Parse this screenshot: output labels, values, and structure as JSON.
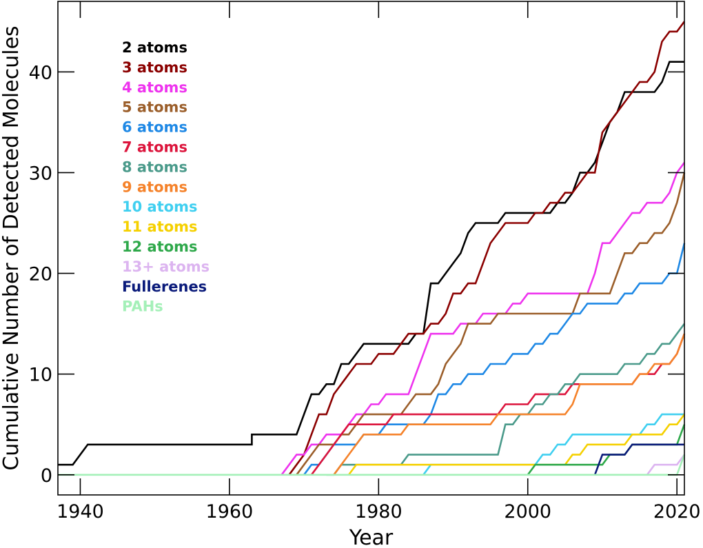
{
  "chart_data": {
    "type": "line",
    "title": "",
    "xlabel": "Year",
    "ylabel": "Cumulative Number of Detected Molecules",
    "xlim": [
      1937,
      2021
    ],
    "ylim": [
      -2,
      47
    ],
    "xticks": [
      1940,
      1960,
      1980,
      2000,
      2020
    ],
    "yticks": [
      0,
      10,
      20,
      30,
      40
    ],
    "grid": false,
    "legend_position": "top-left",
    "series": [
      {
        "name": "2 atoms",
        "color": "#000000",
        "x": [
          1937,
          1939,
          1941,
          1963,
          1963,
          1969,
          1970,
          1971,
          1972,
          1973,
          1974,
          1975,
          1976,
          1977,
          1978,
          1979,
          1980,
          1981,
          1982,
          1983,
          1984,
          1985,
          1986,
          1987,
          1988,
          1989,
          1990,
          1991,
          1992,
          1993,
          1994,
          1995,
          1996,
          1997,
          1998,
          1999,
          2000,
          2001,
          2002,
          2003,
          2004,
          2005,
          2006,
          2007,
          2008,
          2009,
          2010,
          2011,
          2012,
          2013,
          2014,
          2015,
          2016,
          2017,
          2018,
          2019,
          2020,
          2021
        ],
        "y": [
          1,
          1,
          3,
          3,
          4,
          4,
          6,
          8,
          8,
          9,
          9,
          11,
          11,
          12,
          13,
          13,
          13,
          13,
          13,
          13,
          13,
          14,
          14,
          19,
          19,
          20,
          21,
          22,
          24,
          25,
          25,
          25,
          25,
          26,
          26,
          26,
          26,
          26,
          26,
          26,
          27,
          27,
          28,
          30,
          30,
          31,
          33,
          35,
          36,
          38,
          38,
          38,
          38,
          38,
          39,
          41,
          41,
          41
        ]
      },
      {
        "name": "3 atoms",
        "color": "#8b0000",
        "x": [
          1968,
          1969,
          1970,
          1971,
          1972,
          1973,
          1974,
          1975,
          1976,
          1977,
          1978,
          1979,
          1980,
          1981,
          1982,
          1983,
          1984,
          1985,
          1986,
          1987,
          1988,
          1989,
          1990,
          1991,
          1992,
          1993,
          1994,
          1995,
          1996,
          1997,
          1998,
          1999,
          2000,
          2001,
          2002,
          2003,
          2004,
          2005,
          2006,
          2007,
          2008,
          2009,
          2010,
          2011,
          2012,
          2013,
          2014,
          2015,
          2016,
          2017,
          2018,
          2019,
          2020,
          2021
        ],
        "y": [
          0,
          1,
          2,
          4,
          6,
          6,
          8,
          9,
          10,
          11,
          11,
          11,
          12,
          12,
          12,
          13,
          14,
          14,
          14,
          15,
          15,
          16,
          18,
          18,
          19,
          19,
          21,
          23,
          24,
          25,
          25,
          25,
          25,
          26,
          26,
          27,
          27,
          28,
          28,
          29,
          30,
          30,
          34,
          35,
          36,
          37,
          38,
          39,
          39,
          40,
          43,
          44,
          44,
          45
        ]
      },
      {
        "name": "4 atoms",
        "color": "#ee33ee",
        "x": [
          1967,
          1968,
          1969,
          1970,
          1971,
          1972,
          1973,
          1974,
          1975,
          1976,
          1977,
          1978,
          1979,
          1980,
          1981,
          1982,
          1983,
          1984,
          1985,
          1986,
          1987,
          1988,
          1989,
          1990,
          1991,
          1992,
          1993,
          1994,
          1995,
          1996,
          1997,
          1998,
          1999,
          2000,
          2001,
          2002,
          2003,
          2004,
          2005,
          2006,
          2007,
          2008,
          2009,
          2010,
          2011,
          2012,
          2013,
          2014,
          2015,
          2016,
          2017,
          2018,
          2019,
          2020,
          2021
        ],
        "y": [
          0,
          1,
          2,
          2,
          3,
          3,
          4,
          4,
          4,
          5,
          6,
          6,
          7,
          7,
          8,
          8,
          8,
          8,
          10,
          12,
          14,
          14,
          14,
          14,
          15,
          15,
          15,
          16,
          16,
          16,
          16,
          17,
          17,
          18,
          18,
          18,
          18,
          18,
          18,
          18,
          18,
          18,
          20,
          23,
          23,
          24,
          25,
          26,
          26,
          27,
          27,
          27,
          28,
          30,
          31
        ]
      },
      {
        "name": "5 atoms",
        "color": "#9b5e2a",
        "x": [
          1969,
          1970,
          1971,
          1972,
          1973,
          1974,
          1975,
          1976,
          1977,
          1978,
          1979,
          1980,
          1981,
          1982,
          1983,
          1984,
          1985,
          1986,
          1987,
          1988,
          1989,
          1990,
          1991,
          1992,
          1993,
          1994,
          1995,
          1996,
          1997,
          1998,
          1999,
          2000,
          2001,
          2002,
          2003,
          2004,
          2005,
          2006,
          2007,
          2008,
          2009,
          2010,
          2011,
          2012,
          2013,
          2014,
          2015,
          2016,
          2017,
          2018,
          2019,
          2020,
          2021
        ],
        "y": [
          0,
          1,
          2,
          3,
          3,
          3,
          4,
          4,
          5,
          6,
          6,
          6,
          6,
          6,
          6,
          7,
          8,
          8,
          8,
          9,
          11,
          12,
          13,
          15,
          15,
          15,
          15,
          16,
          16,
          16,
          16,
          16,
          16,
          16,
          16,
          16,
          16,
          16,
          18,
          18,
          18,
          18,
          18,
          20,
          22,
          22,
          23,
          23,
          24,
          24,
          25,
          27,
          30
        ]
      },
      {
        "name": "6 atoms",
        "color": "#1e88e5",
        "x": [
          1970,
          1971,
          1972,
          1973,
          1974,
          1975,
          1976,
          1977,
          1978,
          1979,
          1980,
          1981,
          1982,
          1983,
          1984,
          1985,
          1986,
          1987,
          1988,
          1989,
          1990,
          1991,
          1992,
          1993,
          1994,
          1995,
          1996,
          1997,
          1998,
          1999,
          2000,
          2001,
          2002,
          2003,
          2004,
          2005,
          2006,
          2007,
          2008,
          2009,
          2010,
          2011,
          2012,
          2013,
          2014,
          2015,
          2016,
          2017,
          2018,
          2019,
          2020,
          2021
        ],
        "y": [
          0,
          1,
          1,
          2,
          3,
          3,
          3,
          3,
          4,
          4,
          4,
          5,
          5,
          5,
          5,
          5,
          5,
          6,
          8,
          8,
          9,
          9,
          10,
          10,
          10,
          11,
          11,
          11,
          12,
          12,
          12,
          13,
          13,
          14,
          14,
          15,
          16,
          16,
          17,
          17,
          17,
          17,
          17,
          18,
          18,
          19,
          19,
          19,
          19,
          20,
          20,
          23
        ]
      },
      {
        "name": "7 atoms",
        "color": "#dc143c",
        "x": [
          1971,
          1972,
          1973,
          1974,
          1975,
          1976,
          1977,
          1978,
          1979,
          1980,
          1981,
          1982,
          1983,
          1984,
          1985,
          1986,
          1987,
          1988,
          1989,
          1990,
          1991,
          1992,
          1993,
          1994,
          1995,
          1996,
          1997,
          1998,
          1999,
          2000,
          2001,
          2002,
          2003,
          2004,
          2005,
          2006,
          2007,
          2008,
          2009,
          2010,
          2011,
          2012,
          2013,
          2014,
          2015,
          2016,
          2017,
          2018,
          2019,
          2020,
          2021
        ],
        "y": [
          0,
          1,
          2,
          3,
          4,
          5,
          5,
          5,
          5,
          5,
          5,
          6,
          6,
          6,
          6,
          6,
          6,
          6,
          6,
          6,
          6,
          6,
          6,
          6,
          6,
          6,
          7,
          7,
          7,
          7,
          8,
          8,
          8,
          8,
          8,
          9,
          9,
          9,
          9,
          9,
          9,
          9,
          9,
          9,
          10,
          10,
          10,
          11,
          11,
          12,
          14
        ]
      },
      {
        "name": "8 atoms",
        "color": "#4a9a8a",
        "x": [
          1973,
          1974,
          1975,
          1976,
          1977,
          1978,
          1979,
          1980,
          1981,
          1982,
          1983,
          1984,
          1985,
          1986,
          1987,
          1988,
          1989,
          1990,
          1991,
          1992,
          1993,
          1994,
          1995,
          1996,
          1997,
          1998,
          1999,
          2000,
          2001,
          2002,
          2003,
          2004,
          2005,
          2006,
          2007,
          2008,
          2009,
          2010,
          2011,
          2012,
          2013,
          2014,
          2015,
          2016,
          2017,
          2018,
          2019,
          2020,
          2021
        ],
        "y": [
          0,
          0,
          1,
          1,
          1,
          1,
          1,
          1,
          1,
          1,
          1,
          2,
          2,
          2,
          2,
          2,
          2,
          2,
          2,
          2,
          2,
          2,
          2,
          2,
          5,
          5,
          6,
          6,
          7,
          7,
          8,
          8,
          9,
          9,
          10,
          10,
          10,
          10,
          10,
          10,
          11,
          11,
          11,
          12,
          12,
          13,
          13,
          14,
          15
        ]
      },
      {
        "name": "9 atoms",
        "color": "#f5822a",
        "x": [
          1974,
          1975,
          1976,
          1977,
          1978,
          1979,
          1980,
          1981,
          1982,
          1983,
          1984,
          1985,
          1986,
          1987,
          1988,
          1989,
          1990,
          1991,
          1992,
          1993,
          1994,
          1995,
          1996,
          1997,
          1998,
          1999,
          2000,
          2001,
          2002,
          2003,
          2004,
          2005,
          2006,
          2007,
          2008,
          2009,
          2010,
          2011,
          2012,
          2013,
          2014,
          2015,
          2016,
          2017,
          2018,
          2019,
          2020,
          2021
        ],
        "y": [
          0,
          1,
          2,
          3,
          4,
          4,
          4,
          4,
          4,
          4,
          5,
          5,
          5,
          5,
          5,
          5,
          5,
          5,
          5,
          5,
          5,
          5,
          6,
          6,
          6,
          6,
          6,
          6,
          6,
          6,
          6,
          6,
          7,
          9,
          9,
          9,
          9,
          9,
          9,
          9,
          9,
          10,
          10,
          11,
          11,
          11,
          12,
          14
        ]
      },
      {
        "name": "10 atoms",
        "color": "#3fcff0",
        "x": [
          1986,
          1987,
          1988,
          1989,
          1990,
          1991,
          1992,
          1993,
          1994,
          1995,
          1996,
          1997,
          1998,
          1999,
          2000,
          2001,
          2002,
          2003,
          2004,
          2005,
          2006,
          2007,
          2008,
          2009,
          2010,
          2011,
          2012,
          2013,
          2014,
          2015,
          2016,
          2017,
          2018,
          2019,
          2020,
          2021
        ],
        "y": [
          0,
          1,
          1,
          1,
          1,
          1,
          1,
          1,
          1,
          1,
          1,
          1,
          1,
          1,
          1,
          1,
          2,
          2,
          3,
          3,
          4,
          4,
          4,
          4,
          4,
          4,
          4,
          4,
          4,
          4,
          5,
          5,
          6,
          6,
          6,
          6
        ]
      },
      {
        "name": "11 atoms",
        "color": "#f5d000",
        "x": [
          1976,
          1977,
          1978,
          1979,
          1980,
          1981,
          1982,
          1983,
          1984,
          1985,
          1986,
          1987,
          1988,
          1989,
          1990,
          1991,
          1992,
          1993,
          1994,
          1995,
          1996,
          1997,
          1998,
          1999,
          2000,
          2001,
          2002,
          2003,
          2004,
          2005,
          2006,
          2007,
          2008,
          2009,
          2010,
          2011,
          2012,
          2013,
          2014,
          2015,
          2016,
          2017,
          2018,
          2019,
          2020,
          2021
        ],
        "y": [
          0,
          1,
          1,
          1,
          1,
          1,
          1,
          1,
          1,
          1,
          1,
          1,
          1,
          1,
          1,
          1,
          1,
          1,
          1,
          1,
          1,
          1,
          1,
          1,
          1,
          1,
          1,
          1,
          1,
          1,
          2,
          2,
          3,
          3,
          3,
          3,
          3,
          3,
          4,
          4,
          4,
          4,
          4,
          5,
          5,
          6
        ]
      },
      {
        "name": "12 atoms",
        "color": "#2ea84a",
        "x": [
          2000,
          2001,
          2002,
          2003,
          2004,
          2005,
          2006,
          2007,
          2008,
          2009,
          2010,
          2011,
          2012,
          2013,
          2014,
          2015,
          2016,
          2017,
          2018,
          2019,
          2020,
          2021
        ],
        "y": [
          0,
          1,
          1,
          1,
          1,
          1,
          1,
          1,
          1,
          1,
          1,
          2,
          2,
          2,
          3,
          3,
          3,
          3,
          3,
          3,
          3,
          5
        ]
      },
      {
        "name": "13+ atoms",
        "color": "#dcb4f0",
        "x": [
          2016,
          2017,
          2018,
          2019,
          2020,
          2021
        ],
        "y": [
          0,
          1,
          1,
          1,
          1,
          2
        ]
      },
      {
        "name": "Fullerenes",
        "color": "#0a1a7a",
        "x": [
          2009,
          2010,
          2011,
          2012,
          2013,
          2014,
          2015,
          2016,
          2017,
          2018,
          2019,
          2020,
          2021
        ],
        "y": [
          0,
          2,
          2,
          2,
          2,
          3,
          3,
          3,
          3,
          3,
          3,
          3,
          3
        ]
      },
      {
        "name": "PAHs",
        "color": "#a4f0b8",
        "x": [
          1937,
          2020,
          2021
        ],
        "y": [
          0,
          0,
          2
        ]
      }
    ]
  }
}
